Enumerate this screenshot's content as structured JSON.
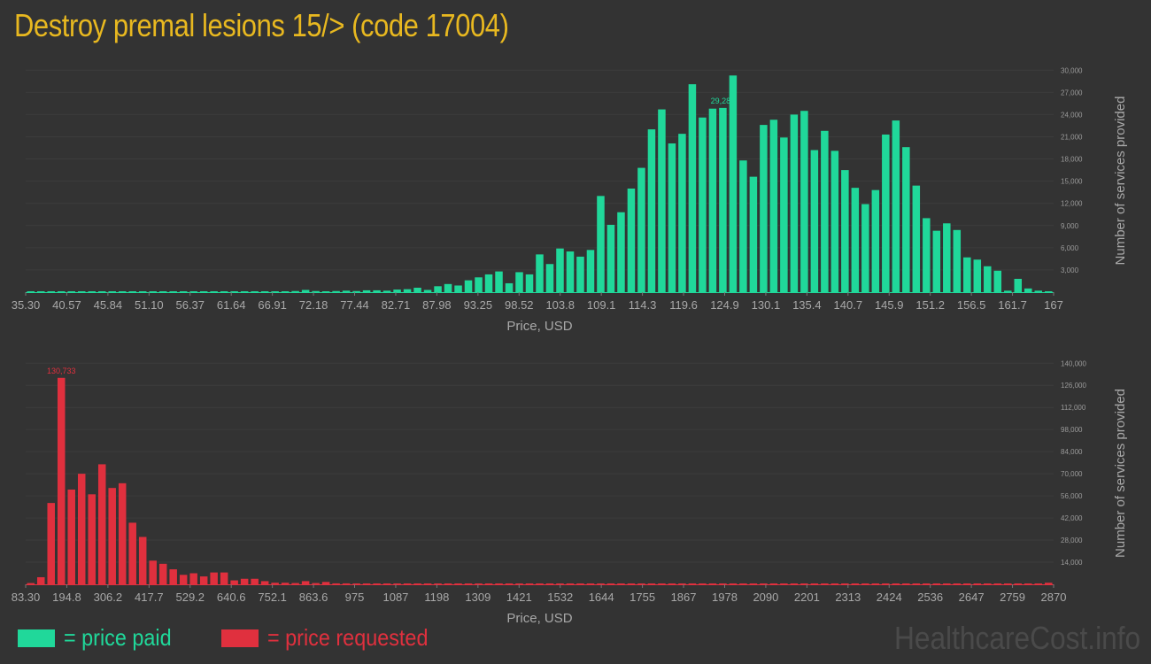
{
  "title": "Destroy premal lesions 15/> (code 17004)",
  "colors": {
    "title": "#e8b820",
    "paid": "#20d89a",
    "requested": "#e0303e",
    "background": "#333333"
  },
  "legend": {
    "paid_label": "= price paid",
    "requested_label": "= price requested"
  },
  "watermark": "HealthcareCost.info",
  "chart_data": [
    {
      "type": "bar",
      "name": "price paid",
      "xlabel": "Price, USD",
      "ylabel": "Number of services provided",
      "ylim": [
        0,
        30000
      ],
      "x_tick_labels": [
        "35.30",
        "40.57",
        "45.84",
        "51.10",
        "56.37",
        "61.64",
        "66.91",
        "72.18",
        "77.44",
        "82.71",
        "87.98",
        "93.25",
        "98.52",
        "103.8",
        "109.1",
        "114.3",
        "119.6",
        "124.9",
        "130.1",
        "135.4",
        "140.7",
        "145.9",
        "151.2",
        "156.5",
        "161.7",
        "167"
      ],
      "y_tick_labels": [
        "3,000",
        "6,000",
        "9,000",
        "12,000",
        "15,000",
        "18,000",
        "21,000",
        "24,000",
        "27,000",
        "30,000"
      ],
      "y_ticks": [
        3000,
        6000,
        9000,
        12000,
        15000,
        18000,
        21000,
        24000,
        27000,
        30000
      ],
      "peak_label": "29,280",
      "peak_index": 68,
      "values": [
        120,
        30,
        20,
        20,
        20,
        20,
        20,
        20,
        20,
        20,
        20,
        20,
        100,
        20,
        20,
        20,
        20,
        20,
        20,
        20,
        20,
        120,
        20,
        20,
        20,
        50,
        150,
        300,
        150,
        50,
        150,
        200,
        150,
        250,
        250,
        200,
        350,
        400,
        600,
        300,
        800,
        1100,
        900,
        1600,
        2000,
        2400,
        2800,
        1200,
        2700,
        2400,
        5100,
        3800,
        5900,
        5500,
        4800,
        5700,
        13000,
        9100,
        10800,
        14000,
        16800,
        22000,
        24700,
        20100,
        21400,
        28100,
        23600,
        24800,
        24900,
        29280,
        17800,
        15600,
        22600,
        23300,
        20900,
        24000,
        24500,
        19200,
        21800,
        19100,
        16500,
        14100,
        11900,
        13800,
        21300,
        23200,
        19600,
        14400,
        10000,
        8300,
        9300,
        8400,
        4700,
        4400,
        3500,
        2900,
        200,
        1800,
        500,
        200,
        100
      ]
    },
    {
      "type": "bar",
      "name": "price requested",
      "xlabel": "Price, USD",
      "ylabel": "Number of services provided",
      "ylim": [
        0,
        140000
      ],
      "x_tick_labels": [
        "83.30",
        "194.8",
        "306.2",
        "417.7",
        "529.2",
        "640.6",
        "752.1",
        "863.6",
        "975",
        "1087",
        "1198",
        "1309",
        "1421",
        "1532",
        "1644",
        "1755",
        "1867",
        "1978",
        "2090",
        "2201",
        "2313",
        "2424",
        "2536",
        "2647",
        "2759",
        "2870"
      ],
      "y_tick_labels": [
        "14,000",
        "28,000",
        "42,000",
        "56,000",
        "70,000",
        "84,000",
        "98,000",
        "112,000",
        "126,000",
        "140,000"
      ],
      "y_ticks": [
        14000,
        28000,
        42000,
        56000,
        70000,
        84000,
        98000,
        112000,
        126000,
        140000
      ],
      "peak_label": "130,733",
      "peak_index": 3,
      "values": [
        800,
        4500,
        51500,
        130733,
        60000,
        70000,
        57000,
        76000,
        61000,
        64000,
        39000,
        30000,
        15000,
        13000,
        9500,
        6000,
        7000,
        5000,
        7500,
        7500,
        2500,
        3500,
        3500,
        2000,
        1000,
        1000,
        800,
        2000,
        800,
        1500,
        600,
        600,
        500,
        500,
        400,
        400,
        300,
        300,
        300,
        300,
        300,
        200,
        200,
        200,
        200,
        200,
        200,
        200,
        200,
        200,
        200,
        200,
        200,
        200,
        150,
        150,
        150,
        150,
        150,
        150,
        300,
        150,
        150,
        150,
        150,
        150,
        150,
        150,
        200,
        150,
        150,
        150,
        150,
        150,
        150,
        150,
        150,
        150,
        150,
        150,
        150,
        150,
        150,
        150,
        150,
        150,
        150,
        150,
        150,
        150,
        150,
        150,
        150,
        150,
        150,
        150,
        150,
        150,
        150,
        150,
        1000
      ]
    }
  ]
}
